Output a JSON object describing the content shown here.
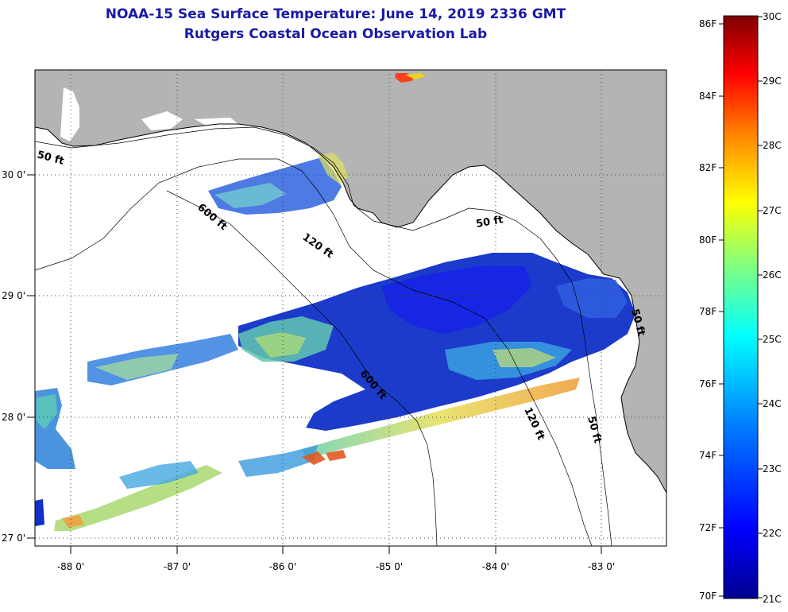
{
  "title": "NOAA-15 Sea Surface Temperature:  June 14, 2019 2336 GMT",
  "subtitle": "Rutgers Coastal Ocean Observation Lab",
  "map": {
    "lon_ticks": [
      "-88 0'",
      "-87 0'",
      "-86 0'",
      "-85 0'",
      "-84 0'",
      "-83 0'"
    ],
    "lat_ticks": [
      "30 0'",
      "29 0'",
      "28 0'",
      "27 0'"
    ],
    "contour_labels": {
      "c50_west": "50 ft",
      "c50_big_bend": "50 ft",
      "c50_south": "50 ft",
      "c50_coast": "50 ft",
      "c120_north": "120 ft",
      "c120_south": "120 ft",
      "c600_north": "600 ft",
      "c600_south": "600 ft"
    },
    "colors": {
      "land": "#b4b4b4",
      "water_nodata": "#ffffff"
    }
  },
  "colorbar": {
    "fahrenheit_labels": [
      "86F",
      "84F",
      "82F",
      "80F",
      "78F",
      "76F",
      "74F",
      "72F",
      "70F"
    ],
    "celsius_labels": [
      "30C",
      "29C",
      "28C",
      "27C",
      "26C",
      "25C",
      "24C",
      "23C",
      "22C",
      "21C"
    ],
    "colors": [
      "#00008f",
      "#0000ff",
      "#0080ff",
      "#00ffff",
      "#80ff80",
      "#ffff00",
      "#ff8000",
      "#ff0000",
      "#800000"
    ]
  }
}
